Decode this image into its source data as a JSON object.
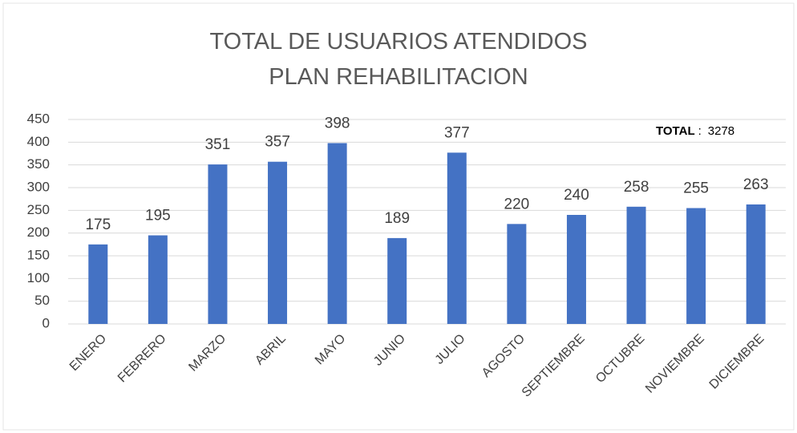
{
  "chart_data": {
    "type": "bar",
    "title": "TOTAL DE USUARIOS ATENDIDOS PLAN REHABILITACION",
    "categories": [
      "ENERO",
      "FEBRERO",
      "MARZO",
      "ABRIL",
      "MAYO",
      "JUNIO",
      "JULIO",
      "AGOSTO",
      "SEPTIEMBRE",
      "OCTUBRE",
      "NOVIEMBRE",
      "DICIEMBRE"
    ],
    "values": [
      175,
      195,
      351,
      357,
      398,
      189,
      377,
      220,
      240,
      258,
      255,
      263
    ],
    "color": "#4472c4",
    "ylim": [
      0,
      450
    ],
    "yticks": [
      0,
      50,
      100,
      150,
      200,
      250,
      300,
      350,
      400,
      450
    ],
    "grid": true,
    "annotation": {
      "label": "TOTAL",
      "separator": ":",
      "value": 3278
    }
  }
}
